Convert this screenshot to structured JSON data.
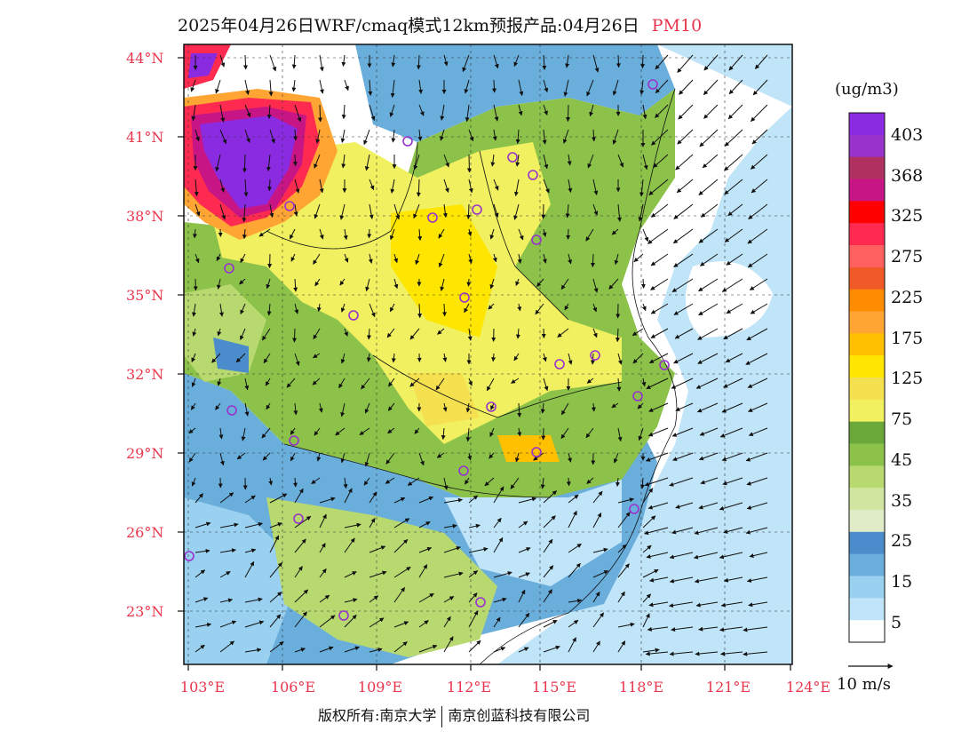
{
  "title": {
    "main": "2025年04月26日WRF/cmaq模式12km预报产品:04月26日",
    "species": "PM10"
  },
  "axes": {
    "lat_ticks": [
      "44°N",
      "41°N",
      "38°N",
      "35°N",
      "32°N",
      "29°N",
      "26°N",
      "23°N"
    ],
    "lon_ticks": [
      "103°E",
      "106°E",
      "109°E",
      "112°E",
      "115°E",
      "118°E",
      "121°E",
      "124°E"
    ]
  },
  "colorbar": {
    "units": "(ug/m3)",
    "labels": [
      "403",
      "368",
      "325",
      "275",
      "225",
      "175",
      "125",
      "75",
      "45",
      "35",
      "25",
      "15",
      "5"
    ],
    "colors": [
      "#8a2be2",
      "#9932cc",
      "#b03060",
      "#c71585",
      "#ff0000",
      "#ff2a4f",
      "#ff6060",
      "#f05a28",
      "#ff8c00",
      "#ffa533",
      "#ffc000",
      "#ffe600",
      "#f5e050",
      "#f0f060",
      "#6aa83a",
      "#8cc24a",
      "#b8d870",
      "#d0e6a0",
      "#e0ecc8",
      "#4a8ccc",
      "#6aaedc",
      "#9ad0f0",
      "#c0e4f8",
      "#ffffff"
    ]
  },
  "wind": {
    "reference_label": "10 m/s"
  },
  "copyright": {
    "left": "版权所有:南京大学",
    "right": "南京创蓝科技有限公司"
  }
}
